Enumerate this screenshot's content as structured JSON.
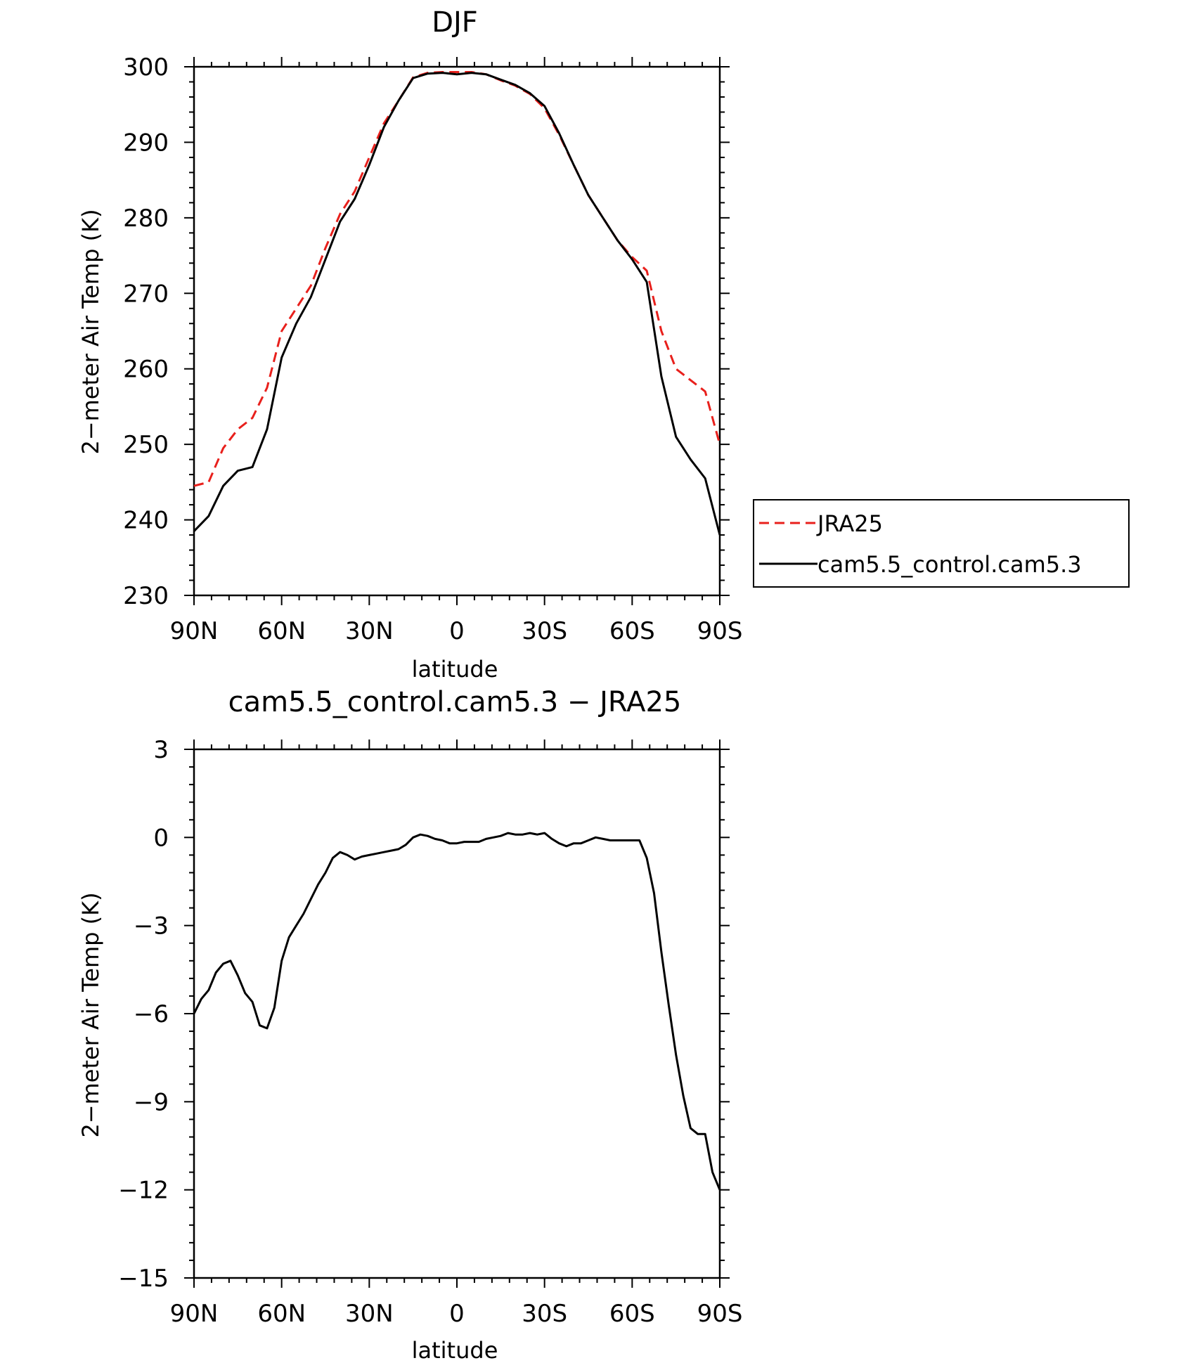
{
  "chart_data": [
    {
      "type": "line",
      "title": "DJF",
      "xlabel": "latitude",
      "ylabel": "2−meter Air Temp (K)",
      "xlim": [
        -90,
        90
      ],
      "ylim": [
        230,
        300
      ],
      "x_ticks": [
        -90,
        -60,
        -30,
        0,
        30,
        60,
        90
      ],
      "x_tick_labels": [
        "90N",
        "60N",
        "30N",
        "0",
        "30S",
        "60S",
        "90S"
      ],
      "y_ticks": [
        230,
        240,
        250,
        260,
        270,
        280,
        290,
        300
      ],
      "y_tick_labels": [
        "230",
        "240",
        "250",
        "260",
        "270",
        "280",
        "290",
        "300"
      ],
      "legend": {
        "placement": "right"
      },
      "series": [
        {
          "name": "JRA25",
          "color": "#e8201c",
          "style": "dashed",
          "x": [
            -90,
            -85,
            -80,
            -75,
            -70,
            -65,
            -60,
            -55,
            -50,
            -45,
            -40,
            -35,
            -30,
            -25,
            -20,
            -15,
            -10,
            -5,
            0,
            5,
            10,
            15,
            20,
            25,
            30,
            35,
            40,
            45,
            50,
            55,
            60,
            65,
            70,
            75,
            80,
            85,
            90
          ],
          "y": [
            244.5,
            245.0,
            249.5,
            252.0,
            253.5,
            257.5,
            265.0,
            268.0,
            271.0,
            276.0,
            280.5,
            283.5,
            288.0,
            292.5,
            295.5,
            298.6,
            299.2,
            299.3,
            299.3,
            299.3,
            299.0,
            298.2,
            297.5,
            296.4,
            294.5,
            291.0,
            287.0,
            283.0,
            280.0,
            277.0,
            274.8,
            273.0,
            265.0,
            260.0,
            258.5,
            257.0,
            250.0
          ]
        },
        {
          "name": "cam5.5_control.cam5.3",
          "color": "#000000",
          "style": "solid",
          "x": [
            -90,
            -85,
            -80,
            -75,
            -70,
            -65,
            -60,
            -55,
            -50,
            -45,
            -40,
            -35,
            -30,
            -25,
            -20,
            -15,
            -10,
            -5,
            0,
            5,
            10,
            15,
            20,
            25,
            30,
            35,
            40,
            45,
            50,
            55,
            60,
            65,
            70,
            75,
            80,
            85,
            90
          ],
          "y": [
            238.5,
            240.5,
            244.5,
            246.5,
            247.0,
            252.0,
            261.5,
            266.0,
            269.5,
            274.5,
            279.5,
            282.5,
            287.0,
            292.0,
            295.5,
            298.5,
            299.1,
            299.2,
            299.0,
            299.2,
            299.0,
            298.3,
            297.6,
            296.5,
            294.8,
            291.2,
            287.0,
            283.0,
            280.0,
            277.0,
            274.5,
            271.5,
            259.0,
            251.0,
            248.0,
            245.5,
            238.0
          ]
        }
      ]
    },
    {
      "type": "line",
      "title": "cam5.5_control.cam5.3 − JRA25",
      "xlabel": "latitude",
      "ylabel": "2−meter Air Temp (K)",
      "xlim": [
        -90,
        90
      ],
      "ylim": [
        -15,
        3
      ],
      "x_ticks": [
        -90,
        -60,
        -30,
        0,
        30,
        60,
        90
      ],
      "x_tick_labels": [
        "90N",
        "60N",
        "30N",
        "0",
        "30S",
        "60S",
        "90S"
      ],
      "y_ticks": [
        -15,
        -12,
        -9,
        -6,
        -3,
        0,
        3
      ],
      "y_tick_labels": [
        "−15",
        "−12",
        "−9",
        "−6",
        "−3",
        "0",
        "3"
      ],
      "series": [
        {
          "color": "#000000",
          "style": "solid",
          "x": [
            -90,
            -87.5,
            -85,
            -82.5,
            -80,
            -77.5,
            -75,
            -72.5,
            -70,
            -67.5,
            -65,
            -62.5,
            -60,
            -57.5,
            -55,
            -52.5,
            -50,
            -47.5,
            -45,
            -42.5,
            -40,
            -37.5,
            -35,
            -32.5,
            -30,
            -27.5,
            -25,
            -22.5,
            -20,
            -17.5,
            -15,
            -12.5,
            -10,
            -7.5,
            -5,
            -2.5,
            0,
            2.5,
            5,
            7.5,
            10,
            12.5,
            15,
            17.5,
            20,
            22.5,
            25,
            27.5,
            30,
            32.5,
            35,
            37.5,
            40,
            42.5,
            45,
            47.5,
            50,
            52.5,
            55,
            57.5,
            60,
            62.5,
            65,
            67.5,
            70,
            72.5,
            75,
            77.5,
            80,
            82.5,
            85,
            87.5,
            90
          ],
          "y": [
            -6.0,
            -5.5,
            -5.2,
            -4.6,
            -4.3,
            -4.2,
            -4.7,
            -5.3,
            -5.6,
            -6.4,
            -6.5,
            -5.8,
            -4.2,
            -3.4,
            -3.0,
            -2.6,
            -2.1,
            -1.6,
            -1.2,
            -0.7,
            -0.5,
            -0.6,
            -0.75,
            -0.65,
            -0.6,
            -0.55,
            -0.5,
            -0.45,
            -0.4,
            -0.25,
            0.0,
            0.1,
            0.05,
            -0.05,
            -0.1,
            -0.2,
            -0.2,
            -0.15,
            -0.15,
            -0.15,
            -0.05,
            0.0,
            0.05,
            0.15,
            0.1,
            0.1,
            0.15,
            0.1,
            0.15,
            -0.05,
            -0.2,
            -0.3,
            -0.2,
            -0.2,
            -0.1,
            0.0,
            -0.05,
            -0.1,
            -0.1,
            -0.1,
            -0.1,
            -0.1,
            -0.7,
            -1.9,
            -3.9,
            -5.7,
            -7.4,
            -8.8,
            -9.9,
            -10.1,
            -10.1,
            -11.4,
            -12.0
          ]
        }
      ]
    }
  ]
}
